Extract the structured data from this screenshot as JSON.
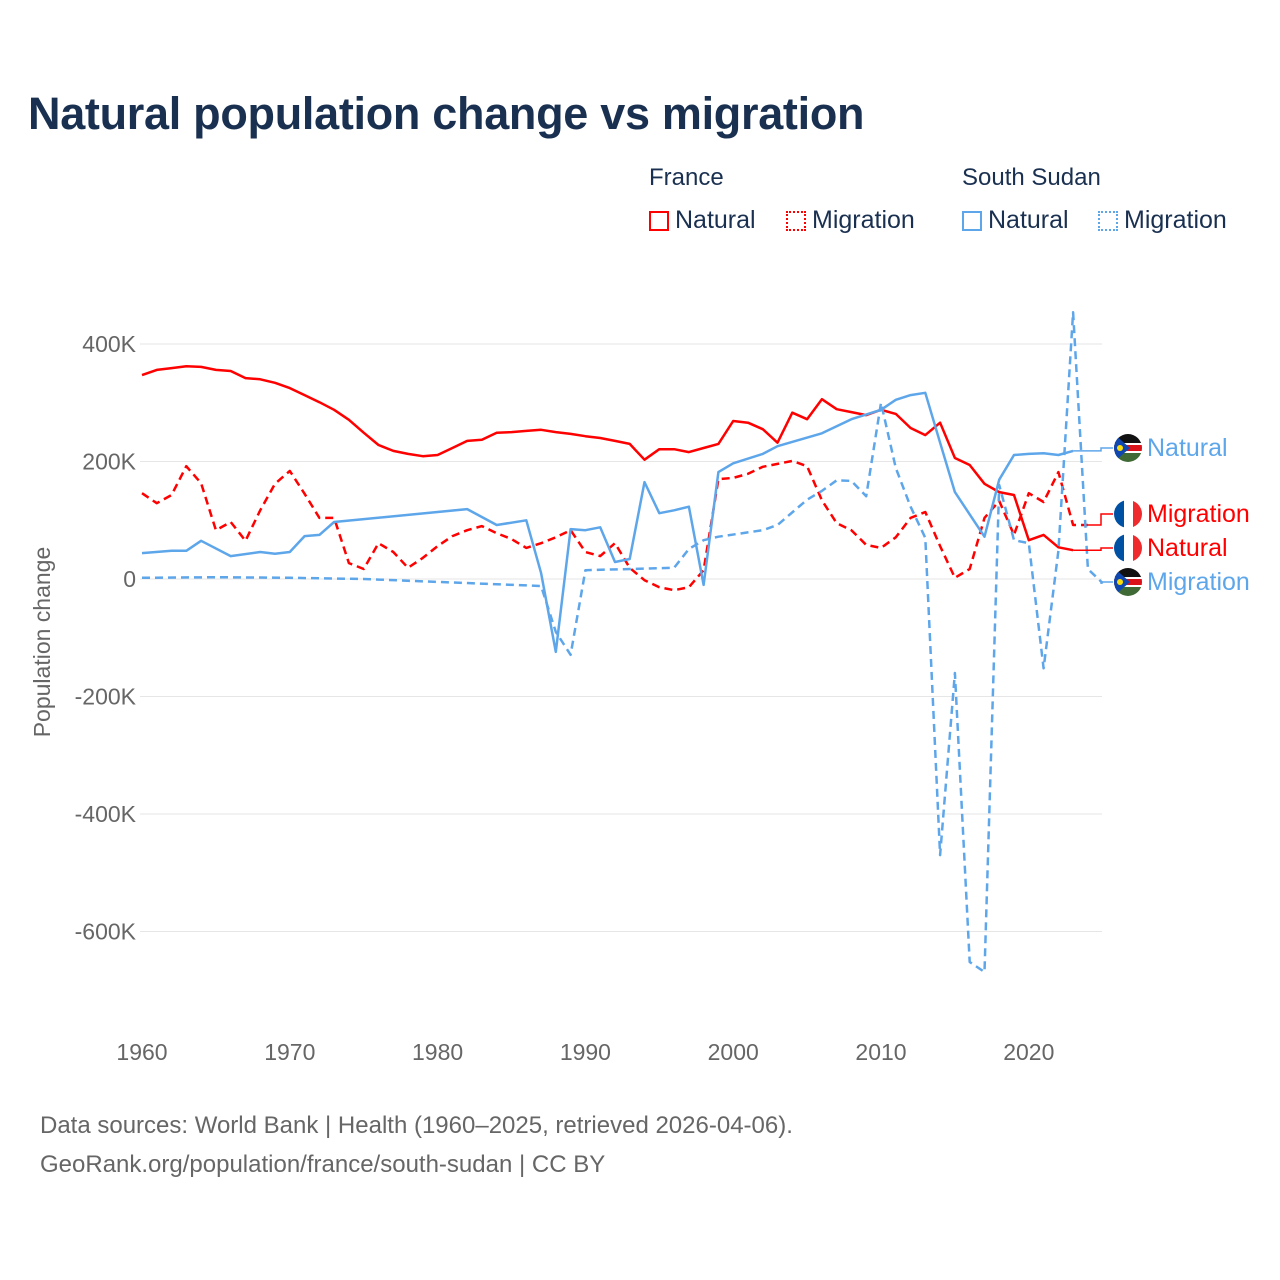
{
  "title": "Natural population change vs migration",
  "legend": {
    "groups": [
      {
        "name": "France",
        "items": [
          "Natural",
          "Migration"
        ],
        "color": "#ff0000"
      },
      {
        "name": "South Sudan",
        "items": [
          "Natural",
          "Migration"
        ],
        "color": "#5ea6ea"
      }
    ]
  },
  "footer": {
    "line1": "Data sources: World Bank | Health (1960–2025, retrieved 2026-04-06).",
    "line2": "GeoRank.org/population/france/south-sudan | CC BY"
  },
  "chart_data": {
    "type": "line",
    "title": "Natural population change vs migration",
    "xlabel": "",
    "ylabel": "Population change",
    "xlim": [
      1960,
      2025
    ],
    "ylim": [
      -700000,
      480000
    ],
    "x_ticks": [
      1960,
      1970,
      1980,
      1990,
      2000,
      2010,
      2020
    ],
    "x_tick_labels": [
      "1960",
      "1970",
      "1980",
      "1990",
      "2000",
      "2010",
      "2020"
    ],
    "y_ticks": [
      400000,
      200000,
      0,
      -200000,
      -400000,
      -600000
    ],
    "y_tick_labels": [
      "400K",
      "200K",
      "0",
      "-200K",
      "-400K",
      "-600K"
    ],
    "grid": true,
    "legend_position": "top-right",
    "series": [
      {
        "name": "France Natural",
        "end_label": "Natural",
        "country": "France",
        "color": "#ff0000",
        "dashed": false,
        "x": [
          1960,
          1961,
          1962,
          1963,
          1964,
          1965,
          1966,
          1967,
          1968,
          1969,
          1970,
          1971,
          1972,
          1973,
          1974,
          1975,
          1976,
          1977,
          1978,
          1979,
          1980,
          1981,
          1982,
          1983,
          1984,
          1985,
          1986,
          1987,
          1988,
          1989,
          1990,
          1991,
          1992,
          1993,
          1994,
          1995,
          1996,
          1997,
          1998,
          1999,
          2000,
          2001,
          2002,
          2003,
          2004,
          2005,
          2006,
          2007,
          2008,
          2009,
          2010,
          2011,
          2012,
          2013,
          2014,
          2015,
          2016,
          2017,
          2018,
          2019,
          2020,
          2021,
          2022,
          2023
        ],
        "y": [
          347000,
          356000,
          359000,
          362000,
          361000,
          356000,
          354000,
          342000,
          340000,
          334000,
          325000,
          313000,
          301000,
          288000,
          271000,
          249000,
          228000,
          218000,
          213000,
          209000,
          211000,
          223000,
          235000,
          237000,
          249000,
          250000,
          252000,
          254000,
          250000,
          247000,
          243000,
          240000,
          235000,
          230000,
          203000,
          221000,
          221000,
          216000,
          223000,
          230000,
          269000,
          266000,
          255000,
          232000,
          283000,
          272000,
          306000,
          289000,
          284000,
          279000,
          288000,
          281000,
          257000,
          245000,
          266000,
          206000,
          194000,
          162000,
          148000,
          143000,
          66000,
          75000,
          54000,
          49000
        ]
      },
      {
        "name": "France Migration",
        "end_label": "Migration",
        "country": "France",
        "color": "#ff0000",
        "dashed": true,
        "x": [
          1960,
          1961,
          1962,
          1963,
          1964,
          1965,
          1966,
          1967,
          1968,
          1969,
          1970,
          1971,
          1972,
          1973,
          1974,
          1975,
          1976,
          1977,
          1978,
          1979,
          1980,
          1981,
          1982,
          1983,
          1984,
          1985,
          1986,
          1987,
          1988,
          1989,
          1990,
          1991,
          1992,
          1993,
          1994,
          1995,
          1996,
          1997,
          1998,
          1999,
          2000,
          2001,
          2002,
          2003,
          2004,
          2005,
          2006,
          2007,
          2008,
          2009,
          2010,
          2011,
          2012,
          2013,
          2014,
          2015,
          2016,
          2017,
          2018,
          2019,
          2020,
          2021,
          2022,
          2023,
          2024
        ],
        "y": [
          146000,
          129000,
          143000,
          192000,
          163000,
          83000,
          97000,
          65000,
          117000,
          162000,
          184000,
          145000,
          104000,
          104000,
          27000,
          17000,
          61000,
          46000,
          19000,
          36000,
          56000,
          73000,
          83000,
          90000,
          78000,
          68000,
          53000,
          61000,
          71000,
          83000,
          46000,
          39000,
          61000,
          19000,
          -2000,
          -14000,
          -19000,
          -14000,
          15000,
          170000,
          172000,
          179000,
          191000,
          196000,
          201000,
          192000,
          134000,
          95000,
          83000,
          58000,
          53000,
          71000,
          104000,
          114000,
          56000,
          2000,
          17000,
          104000,
          133000,
          75000,
          146000,
          131000,
          182000,
          92000,
          92000
        ]
      },
      {
        "name": "South Sudan Natural",
        "end_label": "Natural",
        "country": "South Sudan",
        "color": "#5ea6ea",
        "dashed": false,
        "x": [
          1960,
          1962,
          1963,
          1964,
          1966,
          1968,
          1969,
          1970,
          1971,
          1972,
          1973,
          1982,
          1984,
          1986,
          1987,
          1988,
          1989,
          1990,
          1991,
          1992,
          1993,
          1994,
          1995,
          1996,
          1997,
          1998,
          1999,
          2000,
          2002,
          2003,
          2006,
          2008,
          2010,
          2011,
          2012,
          2013,
          2014,
          2015,
          2016,
          2017,
          2018,
          2019,
          2020,
          2021,
          2022,
          2023
        ],
        "y": [
          44000,
          48000,
          48000,
          65000,
          39000,
          46000,
          43000,
          46000,
          73000,
          75000,
          97000,
          119000,
          92000,
          100000,
          10000,
          -124000,
          85000,
          83000,
          88000,
          29000,
          34000,
          165000,
          112000,
          117000,
          123000,
          -10000,
          182000,
          197000,
          213000,
          226000,
          248000,
          272000,
          288000,
          305000,
          313000,
          317000,
          232000,
          148000,
          110000,
          72000,
          169000,
          211000,
          213000,
          214000,
          211000,
          218000
        ]
      },
      {
        "name": "South Sudan Migration",
        "end_label": "Migration",
        "country": "South Sudan",
        "color": "#5ea6ea",
        "dashed": true,
        "x": [
          1960,
          1965,
          1970,
          1975,
          1980,
          1987,
          1988,
          1989,
          1990,
          1996,
          1997,
          1998,
          1999,
          2002,
          2003,
          2005,
          2006,
          2007,
          2008,
          2009,
          2010,
          2011,
          2012,
          2013,
          2014,
          2015,
          2016,
          2017,
          2018,
          2019,
          2020,
          2021,
          2022,
          2023,
          2024,
          2025
        ],
        "y": [
          2000,
          3000,
          2000,
          0,
          -5000,
          -12000,
          -90000,
          -129000,
          15000,
          19000,
          51000,
          66000,
          72000,
          83000,
          92000,
          135000,
          150000,
          168000,
          167000,
          141000,
          300000,
          189000,
          123000,
          70000,
          -470000,
          -160000,
          -652000,
          -669000,
          160000,
          66000,
          61000,
          -152000,
          48000,
          454000,
          17000,
          -7000
        ]
      }
    ]
  }
}
